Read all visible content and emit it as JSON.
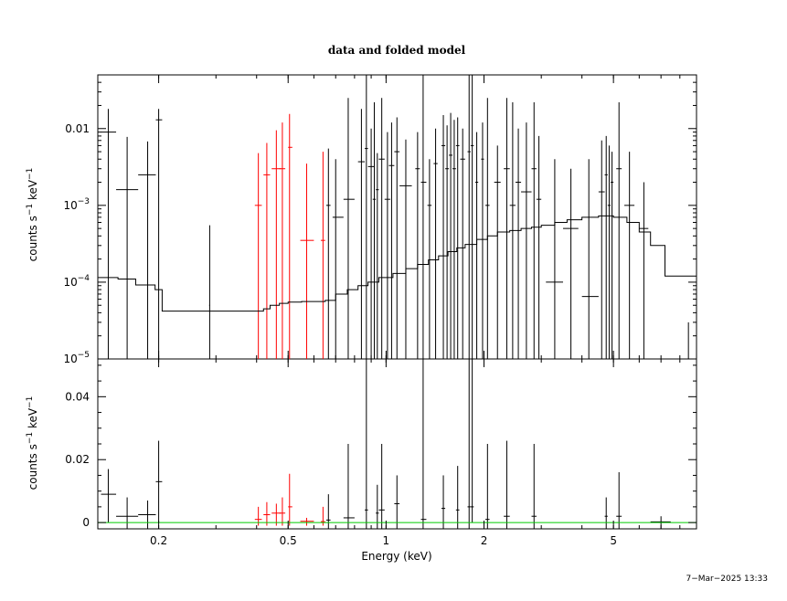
{
  "chart_data": {
    "type": "scatter",
    "title": "data and folded model",
    "timestamp": "7−Mar−2025 13:33",
    "xlabel": "Energy (keV)",
    "xscale": "log",
    "xlim": [
      0.13,
      9.0
    ],
    "x_ticks": [
      {
        "value": 0.2,
        "label": "0.2"
      },
      {
        "value": 0.5,
        "label": "0.5"
      },
      {
        "value": 1,
        "label": "1"
      },
      {
        "value": 2,
        "label": "2"
      },
      {
        "value": 5,
        "label": "5"
      }
    ],
    "panels": [
      {
        "name": "top",
        "ylabel_main": "counts s",
        "ylabel_sup1": "−1",
        "ylabel_mid": " keV",
        "ylabel_sup2": "−1",
        "yscale": "log",
        "ylim": [
          1e-05,
          0.05
        ],
        "y_ticks": [
          {
            "value": 0.01,
            "base": "0.01",
            "exp": ""
          },
          {
            "value": 0.001,
            "base": "10",
            "exp": "−3"
          },
          {
            "value": 0.0001,
            "base": "10",
            "exp": "−4"
          },
          {
            "value": 1e-05,
            "base": "10",
            "exp": "−5"
          }
        ],
        "series": [
          {
            "color": "#000000",
            "points": [
              [
                0.14,
                0.009,
                0.133,
                0.148,
                1e-05,
                0.018
              ],
              [
                0.16,
                0.0016,
                0.148,
                0.173,
                1e-05,
                0.0078
              ],
              [
                0.185,
                0.0025,
                0.173,
                0.196,
                1e-05,
                0.0068
              ],
              [
                0.2,
                0.013,
                0.196,
                0.205,
                1e-05,
                0.018
              ],
              [
                0.287,
                5e-05,
                0.286,
                0.288,
                1e-05,
                0.00055
              ],
              [
                0.665,
                0.001,
                0.655,
                0.675,
                1e-05,
                0.0055
              ],
              [
                0.7,
                0.0007,
                0.685,
                0.74,
                1e-05,
                0.004
              ],
              [
                0.765,
                0.0012,
                0.74,
                0.8,
                1e-05,
                0.025
              ],
              [
                0.84,
                0.0037,
                0.82,
                0.86,
                1e-05,
                0.018
              ],
              [
                0.87,
                0.0055,
                0.86,
                0.88,
                1e-05,
                0.05
              ],
              [
                0.9,
                0.0032,
                0.88,
                0.92,
                1e-05,
                0.01
              ],
              [
                0.92,
                0.0012,
                0.91,
                0.93,
                1e-05,
                0.022
              ],
              [
                0.94,
                0.0016,
                0.93,
                0.95,
                1e-05,
                0.0048
              ],
              [
                0.97,
                0.004,
                0.95,
                0.99,
                1e-05,
                0.025
              ],
              [
                1.01,
                0.0012,
                0.99,
                1.03,
                1e-05,
                0.009
              ],
              [
                1.04,
                0.0033,
                1.02,
                1.06,
                1e-05,
                0.012
              ],
              [
                1.08,
                0.005,
                1.06,
                1.1,
                1e-05,
                0.014
              ],
              [
                1.15,
                0.0018,
                1.1,
                1.2,
                1e-05,
                0.0072
              ],
              [
                1.25,
                0.003,
                1.23,
                1.27,
                1e-05,
                0.009
              ],
              [
                1.3,
                0.002,
                1.28,
                1.33,
                1e-05,
                0.05
              ],
              [
                1.36,
                0.001,
                1.34,
                1.38,
                1e-05,
                0.004
              ],
              [
                1.42,
                0.0035,
                1.4,
                1.44,
                1e-05,
                0.01
              ],
              [
                1.5,
                0.006,
                1.48,
                1.52,
                1e-05,
                0.015
              ],
              [
                1.54,
                0.003,
                1.52,
                1.56,
                1e-05,
                0.011
              ],
              [
                1.58,
                0.0045,
                1.56,
                1.6,
                1e-05,
                0.016
              ],
              [
                1.62,
                0.003,
                1.6,
                1.64,
                1e-05,
                0.013
              ],
              [
                1.66,
                0.006,
                1.64,
                1.68,
                1e-05,
                0.014
              ],
              [
                1.72,
                0.004,
                1.69,
                1.75,
                1e-05,
                0.01
              ],
              [
                1.8,
                0.005,
                1.78,
                1.82,
                1e-05,
                0.05
              ],
              [
                1.84,
                0.006,
                1.82,
                1.86,
                1e-05,
                0.05
              ],
              [
                1.9,
                0.002,
                1.88,
                1.92,
                1e-05,
                0.009
              ],
              [
                1.98,
                0.004,
                1.96,
                2.0,
                1e-05,
                0.012
              ],
              [
                2.05,
                0.001,
                2.02,
                2.08,
                1e-05,
                0.025
              ],
              [
                2.2,
                0.002,
                2.15,
                2.25,
                1e-05,
                0.006
              ],
              [
                2.35,
                0.003,
                2.3,
                2.4,
                1e-05,
                0.025
              ],
              [
                2.45,
                0.001,
                2.4,
                2.5,
                1e-05,
                0.022
              ],
              [
                2.55,
                0.002,
                2.5,
                2.6,
                1e-05,
                0.01
              ],
              [
                2.7,
                0.0015,
                2.6,
                2.8,
                1e-05,
                0.012
              ],
              [
                2.85,
                0.003,
                2.8,
                2.9,
                1e-05,
                0.022
              ],
              [
                2.95,
                0.0012,
                2.9,
                3.0,
                1e-05,
                0.008
              ],
              [
                3.3,
                0.0001,
                3.1,
                3.5,
                1e-05,
                0.004
              ],
              [
                3.7,
                0.0005,
                3.5,
                3.9,
                1e-05,
                0.003
              ],
              [
                4.2,
                6.5e-05,
                4.0,
                4.5,
                1e-05,
                0.004
              ],
              [
                4.6,
                0.0015,
                4.5,
                4.7,
                1e-05,
                0.007
              ],
              [
                4.75,
                0.0025,
                4.7,
                4.8,
                1e-05,
                0.008
              ],
              [
                4.85,
                0.001,
                4.8,
                4.9,
                1e-05,
                0.006
              ],
              [
                4.95,
                0.002,
                4.9,
                5.0,
                1e-05,
                0.005
              ],
              [
                5.2,
                0.003,
                5.1,
                5.3,
                1e-05,
                0.022
              ],
              [
                5.6,
                0.001,
                5.4,
                5.8,
                1e-05,
                0.005
              ],
              [
                6.2,
                0.0005,
                6.0,
                6.4,
                1e-05,
                0.002
              ],
              [
                8.5,
                1e-05,
                8.45,
                8.55,
                1e-05,
                3e-05
              ]
            ]
          },
          {
            "color": "#ff0000",
            "points": [
              [
                0.405,
                0.001,
                0.395,
                0.415,
                1e-05,
                0.0048
              ],
              [
                0.43,
                0.0025,
                0.42,
                0.44,
                1e-05,
                0.0065
              ],
              [
                0.46,
                0.003,
                0.445,
                0.475,
                1e-05,
                0.0095
              ],
              [
                0.48,
                0.003,
                0.47,
                0.49,
                1e-05,
                0.012
              ],
              [
                0.505,
                0.0057,
                0.5,
                0.515,
                1e-05,
                0.0155
              ],
              [
                0.57,
                0.00035,
                0.545,
                0.6,
                1e-05,
                0.0035
              ],
              [
                0.64,
                0.00035,
                0.63,
                0.65,
                1e-05,
                0.005
              ]
            ]
          }
        ],
        "model": [
          [
            0.13,
            0.000115
          ],
          [
            0.15,
            0.00011
          ],
          [
            0.17,
            9.2e-05
          ],
          [
            0.195,
            8e-05
          ],
          [
            0.205,
            4.2e-05
          ],
          [
            0.395,
            4.2e-05
          ],
          [
            0.42,
            4.5e-05
          ],
          [
            0.44,
            5e-05
          ],
          [
            0.47,
            5.3e-05
          ],
          [
            0.5,
            5.5e-05
          ],
          [
            0.55,
            5.6e-05
          ],
          [
            0.65,
            5.8e-05
          ],
          [
            0.7,
            7e-05
          ],
          [
            0.76,
            8e-05
          ],
          [
            0.82,
            9e-05
          ],
          [
            0.88,
            0.0001
          ],
          [
            0.95,
            0.000115
          ],
          [
            1.05,
            0.00013
          ],
          [
            1.15,
            0.00015
          ],
          [
            1.25,
            0.00017
          ],
          [
            1.35,
            0.000195
          ],
          [
            1.45,
            0.00022
          ],
          [
            1.55,
            0.00025
          ],
          [
            1.65,
            0.00028
          ],
          [
            1.75,
            0.00031
          ],
          [
            1.9,
            0.00036
          ],
          [
            2.05,
            0.0004
          ],
          [
            2.2,
            0.00045
          ],
          [
            2.4,
            0.00047
          ],
          [
            2.6,
            0.0005
          ],
          [
            2.8,
            0.00052
          ],
          [
            3.0,
            0.00055
          ],
          [
            3.3,
            0.0006
          ],
          [
            3.6,
            0.00065
          ],
          [
            4.0,
            0.0007
          ],
          [
            4.5,
            0.00073
          ],
          [
            5.0,
            0.0007
          ],
          [
            5.5,
            0.0006
          ],
          [
            6.0,
            0.00045
          ],
          [
            6.5,
            0.0003
          ],
          [
            7.2,
            0.00012
          ],
          [
            9.0,
            0.00012
          ]
        ]
      },
      {
        "name": "bottom",
        "ylabel_main": "counts s",
        "ylabel_sup1": "−1",
        "ylabel_mid": " keV",
        "ylabel_sup2": "−1",
        "yscale": "linear",
        "ylim": [
          -0.002,
          0.052
        ],
        "y_ticks": [
          {
            "value": 0,
            "base": "0",
            "exp": ""
          },
          {
            "value": 0.02,
            "base": "0.02",
            "exp": ""
          },
          {
            "value": 0.04,
            "base": "0.04",
            "exp": ""
          }
        ],
        "series": [
          {
            "color": "#000000",
            "points": [
              [
                0.14,
                0.009,
                0.133,
                0.148,
                0.0,
                0.017
              ],
              [
                0.16,
                0.002,
                0.148,
                0.173,
                -0.002,
                0.008
              ],
              [
                0.185,
                0.0025,
                0.173,
                0.196,
                -0.002,
                0.007
              ],
              [
                0.2,
                0.013,
                0.196,
                0.205,
                0.0,
                0.026
              ],
              [
                0.665,
                0.0008,
                0.655,
                0.675,
                -0.003,
                0.009
              ],
              [
                0.765,
                0.0015,
                0.74,
                0.8,
                -0.002,
                0.025
              ],
              [
                0.87,
                0.004,
                0.86,
                0.88,
                -0.002,
                0.052
              ],
              [
                0.94,
                0.003,
                0.93,
                0.95,
                -0.002,
                0.012
              ],
              [
                0.97,
                0.004,
                0.95,
                0.99,
                -0.002,
                0.025
              ],
              [
                1.08,
                0.006,
                1.06,
                1.1,
                -0.002,
                0.015
              ],
              [
                1.3,
                0.001,
                1.28,
                1.33,
                -0.002,
                0.052
              ],
              [
                1.5,
                0.0045,
                1.48,
                1.52,
                -0.002,
                0.015
              ],
              [
                1.66,
                0.004,
                1.64,
                1.68,
                -0.002,
                0.018
              ],
              [
                1.8,
                0.005,
                1.78,
                1.82,
                -0.002,
                0.052
              ],
              [
                1.84,
                0.005,
                1.82,
                1.86,
                0.0,
                0.052
              ],
              [
                2.05,
                0.001,
                2.02,
                2.08,
                -0.002,
                0.025
              ],
              [
                2.35,
                0.002,
                2.3,
                2.4,
                -0.002,
                0.026
              ],
              [
                2.85,
                0.002,
                2.8,
                2.9,
                -0.002,
                0.025
              ],
              [
                4.75,
                0.002,
                4.7,
                4.8,
                -0.002,
                0.008
              ],
              [
                5.2,
                0.002,
                5.1,
                5.3,
                -0.002,
                0.016
              ],
              [
                7.0,
                0.0002,
                6.5,
                7.5,
                -0.002,
                0.002
              ]
            ]
          },
          {
            "color": "#ff0000",
            "points": [
              [
                0.405,
                0.001,
                0.395,
                0.415,
                -0.001,
                0.005
              ],
              [
                0.43,
                0.0025,
                0.42,
                0.44,
                -0.001,
                0.0065
              ],
              [
                0.46,
                0.003,
                0.445,
                0.475,
                -0.001,
                0.006
              ],
              [
                0.48,
                0.003,
                0.47,
                0.49,
                -0.001,
                0.008
              ],
              [
                0.505,
                0.005,
                0.5,
                0.515,
                -0.001,
                0.0155
              ],
              [
                0.57,
                0.0004,
                0.545,
                0.6,
                -0.001,
                0.0015
              ],
              [
                0.64,
                0.0003,
                0.63,
                0.65,
                -0.001,
                0.005
              ]
            ]
          }
        ],
        "model_color": "#00cc00",
        "model_value": 0.0
      }
    ]
  }
}
